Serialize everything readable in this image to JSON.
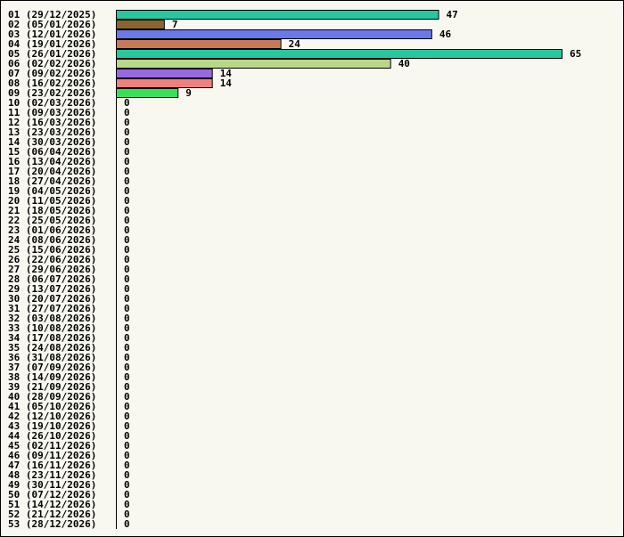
{
  "chart_data": {
    "type": "bar",
    "orientation": "horizontal",
    "title": "",
    "xlabel": "",
    "ylabel": "",
    "xlim": [
      0,
      65
    ],
    "grid": false,
    "legend": "none",
    "categories": [
      "01 (29/12/2025)",
      "02 (05/01/2026)",
      "03 (12/01/2026)",
      "04 (19/01/2026)",
      "05 (26/01/2026)",
      "06 (02/02/2026)",
      "07 (09/02/2026)",
      "08 (16/02/2026)",
      "09 (23/02/2026)",
      "10 (02/03/2026)",
      "11 (09/03/2026)",
      "12 (16/03/2026)",
      "13 (23/03/2026)",
      "14 (30/03/2026)",
      "15 (06/04/2026)",
      "16 (13/04/2026)",
      "17 (20/04/2026)",
      "18 (27/04/2026)",
      "19 (04/05/2026)",
      "20 (11/05/2026)",
      "21 (18/05/2026)",
      "22 (25/05/2026)",
      "23 (01/06/2026)",
      "24 (08/06/2026)",
      "25 (15/06/2026)",
      "26 (22/06/2026)",
      "27 (29/06/2026)",
      "28 (06/07/2026)",
      "29 (13/07/2026)",
      "30 (20/07/2026)",
      "31 (27/07/2026)",
      "32 (03/08/2026)",
      "33 (10/08/2026)",
      "34 (17/08/2026)",
      "35 (24/08/2026)",
      "36 (31/08/2026)",
      "37 (07/09/2026)",
      "38 (14/09/2026)",
      "39 (21/09/2026)",
      "40 (28/09/2026)",
      "41 (05/10/2026)",
      "42 (12/10/2026)",
      "43 (19/10/2026)",
      "44 (26/10/2026)",
      "45 (02/11/2026)",
      "46 (09/11/2026)",
      "47 (16/11/2026)",
      "48 (23/11/2026)",
      "49 (30/11/2026)",
      "50 (07/12/2026)",
      "51 (14/12/2026)",
      "52 (21/12/2026)",
      "53 (28/12/2026)"
    ],
    "values": [
      47,
      7,
      46,
      24,
      65,
      40,
      14,
      14,
      9,
      0,
      0,
      0,
      0,
      0,
      0,
      0,
      0,
      0,
      0,
      0,
      0,
      0,
      0,
      0,
      0,
      0,
      0,
      0,
      0,
      0,
      0,
      0,
      0,
      0,
      0,
      0,
      0,
      0,
      0,
      0,
      0,
      0,
      0,
      0,
      0,
      0,
      0,
      0,
      0,
      0,
      0,
      0,
      0
    ],
    "bar_colors": [
      "#27c8a0",
      "#8b6530",
      "#6b78e8",
      "#c87a58",
      "#27c8a0",
      "#b8d888",
      "#9a68e0",
      "#f08080",
      "#38e058"
    ],
    "bar_border_color": "#000000",
    "axis_color": "#000000"
  }
}
